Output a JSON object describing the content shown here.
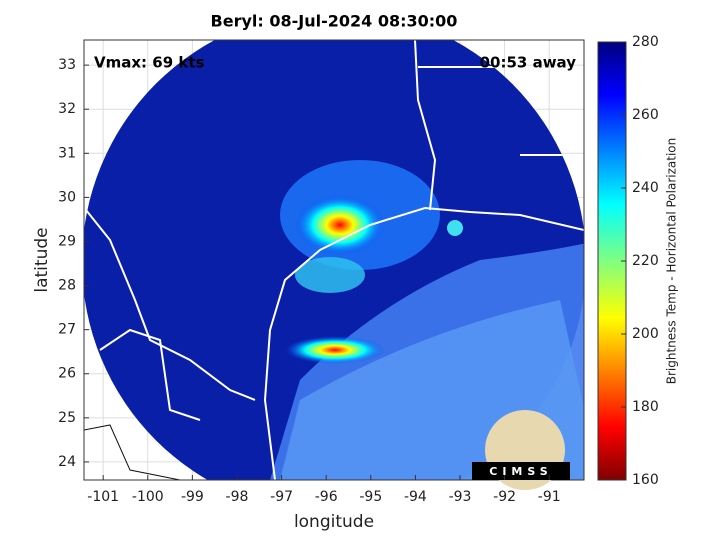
{
  "chart_data": {
    "type": "map",
    "title": "Beryl: 08-Jul-2024 08:30:00",
    "annotations": [
      "Vmax: 69 kts",
      "00:53 away"
    ],
    "xlabel": "longitude",
    "ylabel": "latitude",
    "xlim": [
      -101.43,
      -90.22
    ],
    "ylim": [
      23.59,
      33.57
    ],
    "xticks": [
      -101,
      -100,
      -99,
      -98,
      -97,
      -96,
      -95,
      -94,
      -93,
      -92,
      -91
    ],
    "yticks": [
      24,
      25,
      26,
      27,
      28,
      29,
      30,
      31,
      32,
      33
    ],
    "grid": true,
    "colorbar": {
      "label": "Brightness Temp - Horizontal Polarization",
      "lim": [
        160,
        280
      ],
      "ticks": [
        160,
        180,
        200,
        220,
        240,
        260,
        280
      ]
    },
    "logo": "CIMSS"
  }
}
